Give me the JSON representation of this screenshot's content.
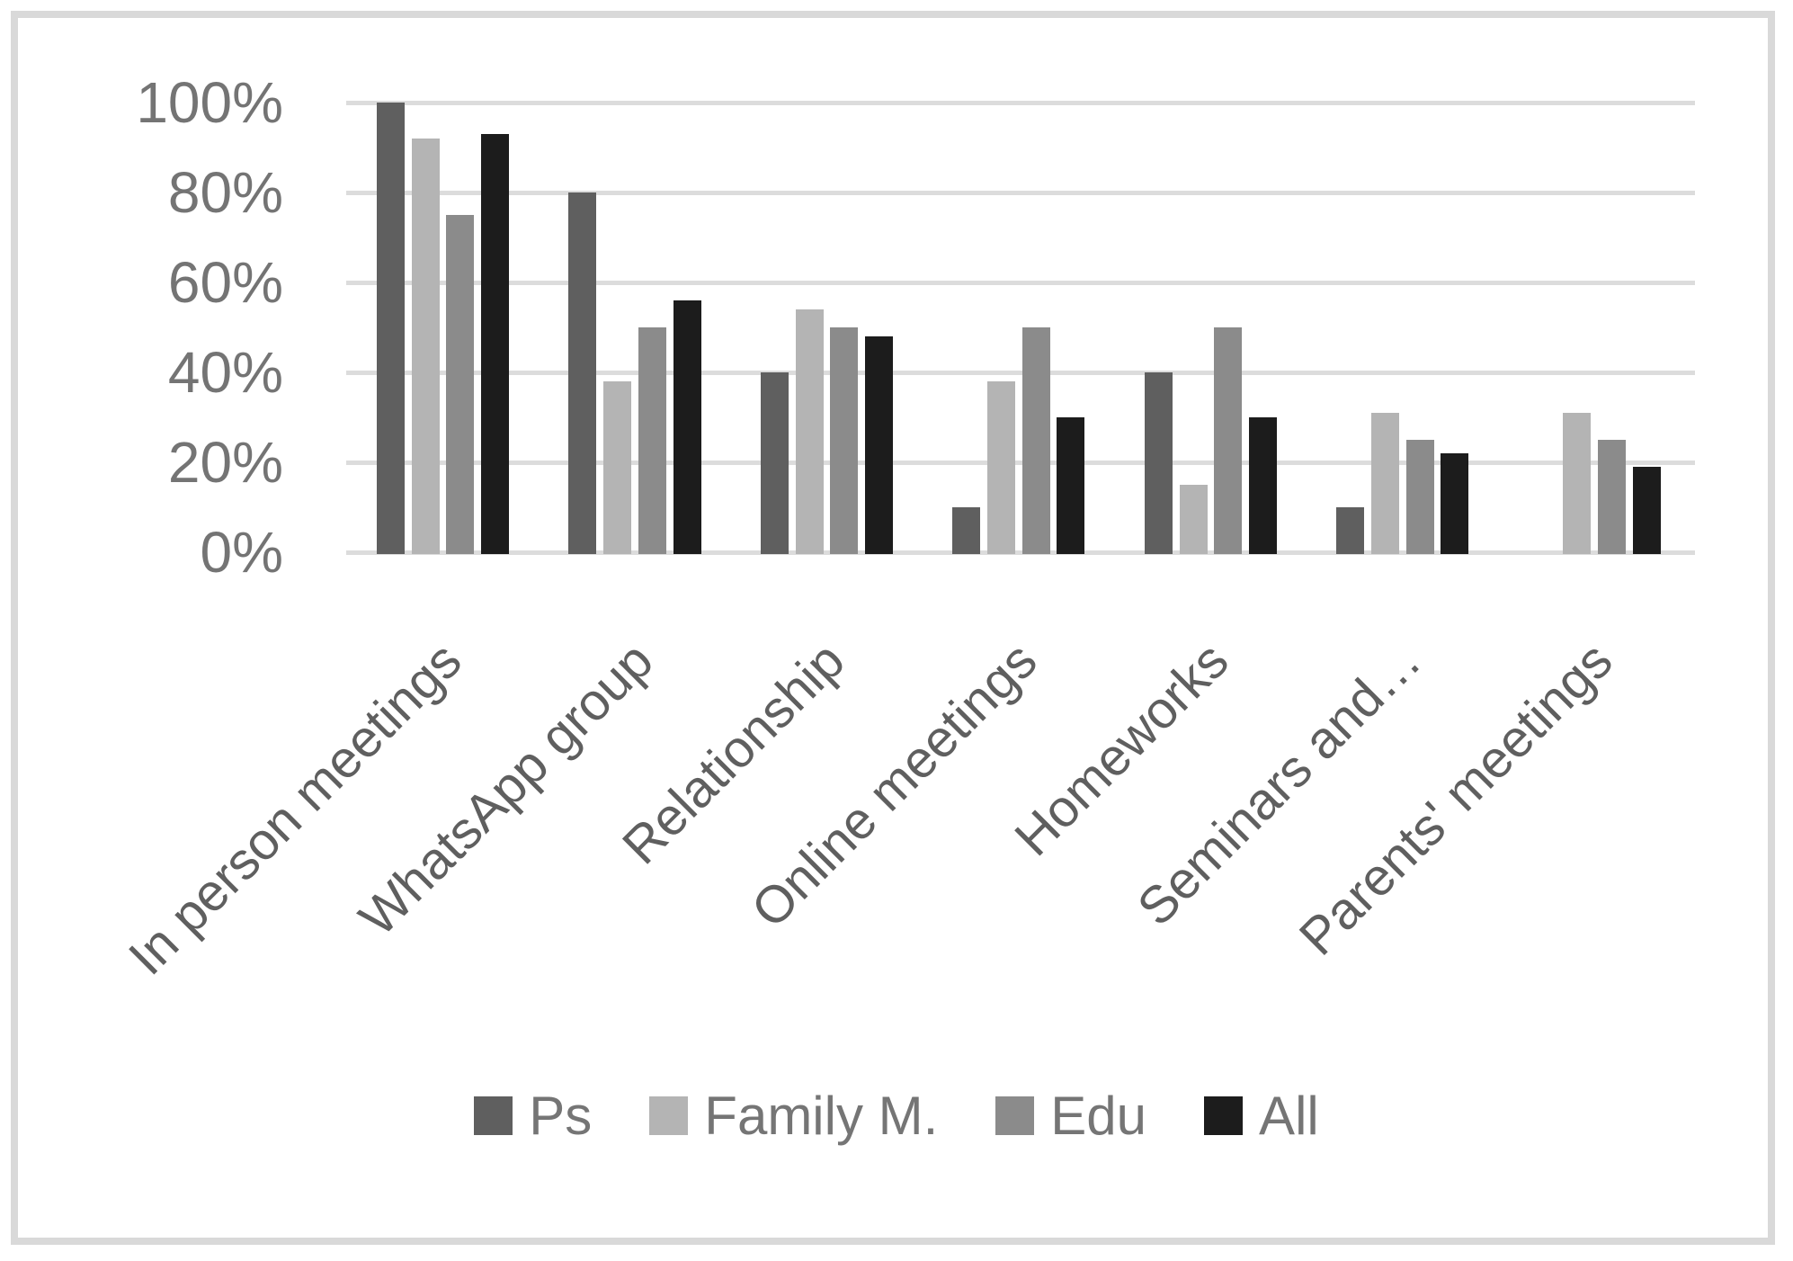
{
  "chart_data": {
    "type": "bar",
    "title": "",
    "xlabel": "",
    "ylabel": "",
    "categories": [
      "In person meetings",
      "WhatsApp group",
      "Relationship",
      "Online meetings",
      "Homeworks",
      "Seminars and…",
      "Parents' meetings"
    ],
    "series": [
      {
        "name": "Ps",
        "color": "#5f5f5f",
        "values": [
          100,
          80,
          40,
          10,
          40,
          10,
          0
        ]
      },
      {
        "name": "Family M.",
        "color": "#b4b4b4",
        "values": [
          92,
          38,
          54,
          38,
          15,
          31,
          31
        ]
      },
      {
        "name": "Edu",
        "color": "#8b8b8b",
        "values": [
          75,
          50,
          50,
          50,
          50,
          25,
          25
        ]
      },
      {
        "name": "All",
        "color": "#1c1c1c",
        "values": [
          93,
          56,
          48,
          30,
          30,
          22,
          19
        ]
      }
    ],
    "y_tick_labels": [
      "100%",
      "80%",
      "60%",
      "40%",
      "20%",
      "0%"
    ],
    "ylim": [
      0,
      100
    ],
    "ytick_step": 20,
    "grid": "horizontal",
    "legend_position": "bottom"
  },
  "colors": {
    "background": "#ffffff",
    "frame_border": "#d9d9d9",
    "gridline": "#dcdcdc",
    "y_tick_text": "#747474",
    "category_text": "#5f5f5f",
    "legend_text": "#757575"
  }
}
